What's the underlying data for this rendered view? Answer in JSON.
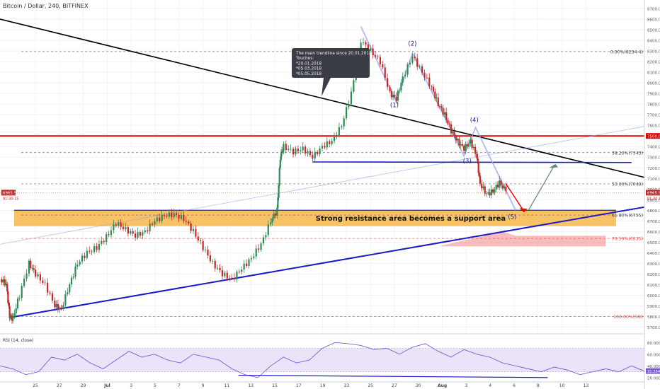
{
  "header": {
    "symbol_title": "Bitcoin / Dollar, 240, BITFINEX"
  },
  "chart_data": {
    "type": "candlestick",
    "title": "Bitcoin / Dollar, 240, BITFINEX",
    "ylim": [
      5650,
      8780
    ],
    "y_ticks": [
      5700,
      5800,
      5900,
      6000,
      6100,
      6200,
      6300,
      6400,
      6500,
      6600,
      6700,
      6800,
      6900,
      7000,
      7100,
      7200,
      7300,
      7400,
      7500,
      7600,
      7700,
      7800,
      7900,
      8000,
      8100,
      8200,
      8300,
      8400,
      8500,
      8600,
      8700
    ],
    "x_ticks": [
      "25",
      "27",
      "29",
      "Jul",
      "3",
      "5",
      "7",
      "9",
      "11",
      "13",
      "15",
      "17",
      "19",
      "23",
      "25",
      "27",
      "30",
      "Aug",
      "3",
      "4",
      "6",
      "8",
      "10",
      "13"
    ],
    "price_path": [
      [
        0.0,
        6150
      ],
      [
        0.01,
        6100
      ],
      [
        0.015,
        5800
      ],
      [
        0.02,
        5780
      ],
      [
        0.03,
        6000
      ],
      [
        0.045,
        6300
      ],
      [
        0.055,
        6200
      ],
      [
        0.07,
        6100
      ],
      [
        0.085,
        5900
      ],
      [
        0.095,
        5870
      ],
      [
        0.108,
        6100
      ],
      [
        0.12,
        6300
      ],
      [
        0.135,
        6400
      ],
      [
        0.15,
        6450
      ],
      [
        0.165,
        6550
      ],
      [
        0.18,
        6680
      ],
      [
        0.195,
        6620
      ],
      [
        0.21,
        6560
      ],
      [
        0.225,
        6600
      ],
      [
        0.24,
        6700
      ],
      [
        0.255,
        6750
      ],
      [
        0.27,
        6760
      ],
      [
        0.285,
        6720
      ],
      [
        0.3,
        6600
      ],
      [
        0.315,
        6450
      ],
      [
        0.33,
        6300
      ],
      [
        0.345,
        6200
      ],
      [
        0.36,
        6150
      ],
      [
        0.375,
        6250
      ],
      [
        0.39,
        6350
      ],
      [
        0.405,
        6480
      ],
      [
        0.42,
        6700
      ],
      [
        0.43,
        6800
      ],
      [
        0.435,
        7300
      ],
      [
        0.44,
        7400
      ],
      [
        0.455,
        7350
      ],
      [
        0.47,
        7380
      ],
      [
        0.485,
        7300
      ],
      [
        0.5,
        7400
      ],
      [
        0.515,
        7450
      ],
      [
        0.53,
        7600
      ],
      [
        0.545,
        7900
      ],
      [
        0.56,
        8400
      ],
      [
        0.575,
        8300
      ],
      [
        0.59,
        8200
      ],
      [
        0.605,
        7900
      ],
      [
        0.615,
        7850
      ],
      [
        0.625,
        8050
      ],
      [
        0.64,
        8250
      ],
      [
        0.655,
        8100
      ],
      [
        0.67,
        7950
      ],
      [
        0.68,
        7800
      ],
      [
        0.69,
        7700
      ],
      [
        0.7,
        7550
      ],
      [
        0.71,
        7450
      ],
      [
        0.72,
        7380
      ],
      [
        0.73,
        7450
      ],
      [
        0.74,
        7300
      ],
      [
        0.745,
        7050
      ],
      [
        0.755,
        6950
      ],
      [
        0.765,
        6980
      ],
      [
        0.775,
        7060
      ],
      [
        0.785,
        6980
      ]
    ],
    "series": [
      {
        "name": "RSI (14, close)",
        "last_value": 31.2549
      }
    ],
    "last_price_label": "6965.9",
    "timer_label": "01:30:15",
    "annotations": {
      "callout_lines": [
        "The main trendline since 20.01.2018",
        "Touches:",
        "*20.01.2018",
        "*05.03.2018",
        "*05.05.2018"
      ],
      "resistance_label": "Strong resistance area becomes a support area",
      "level_7500_label": "7500.0",
      "fib_levels": [
        {
          "label": "0.00%(8294.4)",
          "value": 8294.4
        },
        {
          "label": "38.20%(7343)",
          "value": 7343
        },
        {
          "label": "50.00%(7049)",
          "value": 7049
        },
        {
          "label": "61.80%(6755)",
          "value": 6755
        },
        {
          "label": "70.59%(6535)",
          "value": 6535
        },
        {
          "label": "100.00%(580",
          "value": 5800
        }
      ],
      "waves": [
        "(1)",
        "(2)",
        "(3)",
        "(4)",
        "(5)"
      ]
    },
    "rsi": {
      "label": "RSI (14, close)",
      "ylim": [
        15,
        90
      ],
      "ticks": [
        80,
        60,
        40,
        20
      ],
      "tick_labels": [
        "80.0000",
        "60.0000",
        "40.0000",
        "20.0000"
      ],
      "last_label": "31.2549"
    }
  }
}
